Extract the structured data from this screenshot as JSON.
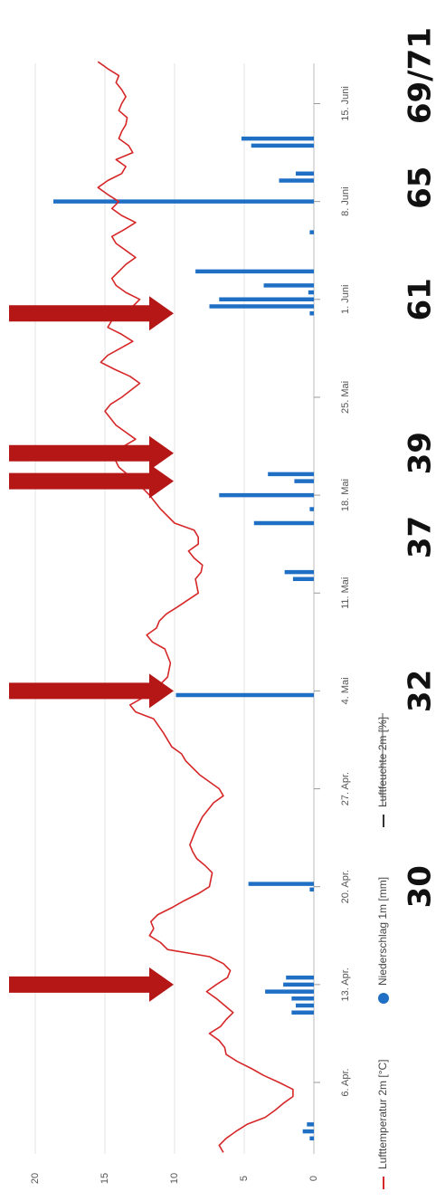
{
  "chart_data": {
    "type": "line",
    "orientation": "rotated-90-clockwise",
    "title": "",
    "ylim": [
      0,
      22
    ],
    "y_ticks": [
      "0",
      "5",
      "10",
      "15",
      "20"
    ],
    "x_ticks": [
      "6. Apr.",
      "13. Apr.",
      "20. Apr.",
      "27. Apr.",
      "4. Mai",
      "11. Mai",
      "18. Mai",
      "25. Mai",
      "1. Juni",
      "8. Juni",
      "15. Juni"
    ],
    "x_tick_days": [
      6,
      13,
      20,
      27,
      34,
      41,
      48,
      55,
      62,
      69,
      76
    ],
    "grid": true,
    "legend": {
      "placement": "bottom",
      "entries": [
        {
          "label": "Lufttemperatur 2m [°C]",
          "color": "#d62728",
          "marker": "line"
        },
        {
          "label": "Niederschlag 1m [mm]",
          "color": "#1f6fc5",
          "marker": "dot"
        },
        {
          "label": "Luftfeuchte 2m [%]",
          "color": "#333333",
          "marker": "line",
          "struck": true
        }
      ]
    },
    "series": [
      {
        "name": "Lufttemperatur 2m [°C]",
        "color": "#d62728",
        "kind": "line",
        "points": [
          [
            1,
            6.5
          ],
          [
            1.5,
            6.8
          ],
          [
            2,
            6.3
          ],
          [
            2.5,
            5.6
          ],
          [
            3,
            4.8
          ],
          [
            3.5,
            3.5
          ],
          [
            4,
            2.8
          ],
          [
            4.5,
            2.2
          ],
          [
            5,
            1.5
          ],
          [
            5.5,
            1.5
          ],
          [
            6,
            2.5
          ],
          [
            6.5,
            3.6
          ],
          [
            7,
            4.5
          ],
          [
            7.5,
            5.5
          ],
          [
            8,
            6.3
          ],
          [
            8.5,
            6.4
          ],
          [
            9,
            6.8
          ],
          [
            9.5,
            7.5
          ],
          [
            10,
            6.7
          ],
          [
            10.5,
            6.3
          ],
          [
            11,
            5.8
          ],
          [
            11.5,
            6.4
          ],
          [
            12,
            7.0
          ],
          [
            12.5,
            7.7
          ],
          [
            13,
            7.0
          ],
          [
            13.5,
            6.2
          ],
          [
            14,
            6.0
          ],
          [
            14.5,
            6.5
          ],
          [
            15,
            7.5
          ],
          [
            15.5,
            10.5
          ],
          [
            16,
            11.0
          ],
          [
            16.5,
            11.8
          ],
          [
            17,
            11.5
          ],
          [
            17.5,
            11.7
          ],
          [
            18,
            11.2
          ],
          [
            18.5,
            10.2
          ],
          [
            19,
            9.3
          ],
          [
            19.5,
            8.3
          ],
          [
            20,
            7.5
          ],
          [
            21,
            7.3
          ],
          [
            21.5,
            7.8
          ],
          [
            22,
            8.4
          ],
          [
            22.5,
            8.7
          ],
          [
            23,
            8.9
          ],
          [
            24,
            8.5
          ],
          [
            25,
            8.0
          ],
          [
            26,
            7.2
          ],
          [
            26.5,
            6.5
          ],
          [
            27,
            6.8
          ],
          [
            28,
            8.2
          ],
          [
            29,
            9.2
          ],
          [
            29.5,
            9.5
          ],
          [
            30,
            10.2
          ],
          [
            31,
            10.8
          ],
          [
            32,
            11.5
          ],
          [
            32.5,
            12.8
          ],
          [
            33,
            13.2
          ],
          [
            33.5,
            12.3
          ],
          [
            34,
            11.5
          ],
          [
            35,
            10.5
          ],
          [
            36,
            10.3
          ],
          [
            37,
            10.7
          ],
          [
            37.5,
            11.6
          ],
          [
            38,
            12.0
          ],
          [
            38.5,
            11.3
          ],
          [
            39,
            11.1
          ],
          [
            39.5,
            10.6
          ],
          [
            40,
            9.8
          ],
          [
            41,
            8.3
          ],
          [
            42,
            8.5
          ],
          [
            42.5,
            8.1
          ],
          [
            43,
            8.0
          ],
          [
            43.5,
            8.6
          ],
          [
            44,
            9.0
          ],
          [
            44.5,
            8.3
          ],
          [
            45,
            8.3
          ],
          [
            45.5,
            8.6
          ],
          [
            46,
            10.0
          ],
          [
            47,
            11.0
          ],
          [
            48,
            11.8
          ],
          [
            49,
            12.8
          ],
          [
            50,
            14.0
          ],
          [
            51,
            14.5
          ],
          [
            52,
            12.8
          ],
          [
            53,
            14.2
          ],
          [
            54,
            15.0
          ],
          [
            54.5,
            14.6
          ],
          [
            55,
            13.8
          ],
          [
            56,
            12.5
          ],
          [
            56.5,
            13.2
          ],
          [
            57,
            14.3
          ],
          [
            57.5,
            15.3
          ],
          [
            58,
            14.8
          ],
          [
            58.5,
            13.9
          ],
          [
            59,
            13.0
          ],
          [
            59.5,
            13.8
          ],
          [
            60,
            14.8
          ],
          [
            60.5,
            14.5
          ],
          [
            61,
            14.2
          ],
          [
            61.5,
            13.0
          ],
          [
            62,
            12.5
          ],
          [
            62.5,
            13.5
          ],
          [
            63,
            14.2
          ],
          [
            63.5,
            14.5
          ],
          [
            64,
            14.0
          ],
          [
            64.5,
            13.5
          ],
          [
            65,
            12.8
          ],
          [
            65.5,
            13.5
          ],
          [
            66,
            14.2
          ],
          [
            66.5,
            14.5
          ],
          [
            67,
            13.6
          ],
          [
            67.5,
            12.8
          ],
          [
            68,
            13.8
          ],
          [
            68.5,
            14.5
          ],
          [
            69,
            14.0
          ],
          [
            69.5,
            14.8
          ],
          [
            70,
            15.5
          ],
          [
            70.5,
            14.8
          ],
          [
            71,
            13.8
          ],
          [
            71.5,
            13.5
          ],
          [
            72,
            14.2
          ],
          [
            72.5,
            13.0
          ],
          [
            73,
            13.3
          ],
          [
            73.5,
            14.0
          ],
          [
            74,
            13.8
          ],
          [
            74.5,
            13.5
          ],
          [
            75,
            13.4
          ],
          [
            75.5,
            14.0
          ],
          [
            76,
            13.8
          ],
          [
            76.5,
            13.5
          ],
          [
            77,
            13.8
          ],
          [
            77.5,
            14.2
          ],
          [
            78,
            14.0
          ],
          [
            78.5,
            14.8
          ],
          [
            79,
            15.5
          ]
        ]
      },
      {
        "name": "Niederschlag 1m [mm]",
        "color": "#1f6fc5",
        "kind": "bar",
        "points": [
          [
            2.0,
            0.3
          ],
          [
            2.5,
            0.8
          ],
          [
            3.0,
            0.5
          ],
          [
            11.0,
            1.6
          ],
          [
            11.5,
            1.3
          ],
          [
            12.0,
            1.6
          ],
          [
            12.5,
            3.5
          ],
          [
            13.0,
            2.2
          ],
          [
            13.5,
            2.0
          ],
          [
            19.8,
            0.3
          ],
          [
            20.2,
            4.7
          ],
          [
            33.7,
            9.9
          ],
          [
            42.0,
            1.5
          ],
          [
            42.5,
            2.1
          ],
          [
            46.0,
            4.3
          ],
          [
            47.0,
            0.3
          ],
          [
            48.0,
            6.8
          ],
          [
            49.0,
            1.4
          ],
          [
            49.5,
            3.3
          ],
          [
            61.0,
            0.3
          ],
          [
            61.5,
            7.5
          ],
          [
            62.0,
            6.8
          ],
          [
            62.5,
            0.4
          ],
          [
            63.0,
            3.6
          ],
          [
            64.0,
            8.5
          ],
          [
            66.8,
            0.3
          ],
          [
            69.0,
            18.7
          ],
          [
            70.5,
            2.5
          ],
          [
            71.0,
            1.3
          ],
          [
            73.0,
            4.5
          ],
          [
            73.5,
            5.2
          ]
        ]
      }
    ],
    "arrows_at_days": [
      13,
      34,
      49,
      51,
      61
    ]
  },
  "leaf_counts": [
    {
      "text": "30",
      "day": 20
    },
    {
      "text": "32",
      "day": 34
    },
    {
      "text": "37",
      "day": 45
    },
    {
      "text": "39",
      "day": 51
    },
    {
      "text": "61",
      "day": 62
    },
    {
      "text": "65",
      "day": 70
    },
    {
      "text": "69/71",
      "day": 78
    }
  ]
}
